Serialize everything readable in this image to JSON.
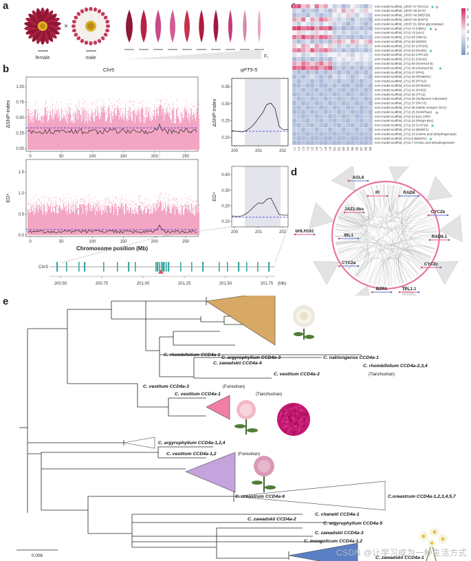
{
  "panels": {
    "a": "a",
    "b": "b",
    "c": "c",
    "d": "d",
    "e": "e"
  },
  "panel_a": {
    "female_label": "female",
    "cross_symbol": "×",
    "male_label": "male",
    "f1_label": "F₁",
    "colors": {
      "female": "#9b1b3a",
      "male_petal": "#f4f0ec",
      "male_tip": "#c23a5e",
      "ray": [
        "#8e1836",
        "#b52346",
        "#c84a8c",
        "#d45b96",
        "#c8304c",
        "#b01c3b",
        "#9e1a4a",
        "#c23a7a",
        "#d889ad",
        "#e6a9c7"
      ]
    }
  },
  "panel_b": {
    "title_left": "Chr5",
    "title_right": "qPT5-5",
    "ylabel_top": "ΔSNP-index",
    "ylabel_bottom": "ED⁴",
    "xlabel": "Chromosome position (Mb)",
    "x_ticks_left": [
      "0",
      "50",
      "100",
      "150",
      "200",
      "250"
    ],
    "x_ticks_right": [
      "200",
      "201",
      "202"
    ],
    "y_ticks_top_left": [
      "0.00",
      "0.25",
      "0.50",
      "0.75",
      "1.00"
    ],
    "y_ticks_top_right": [
      "0.20",
      "0.25",
      "0.30",
      "0.35"
    ],
    "y_ticks_bottom_left": [
      "0.0",
      "0.5",
      "1.0",
      "1.5"
    ],
    "y_ticks_bottom_right": [
      "0.10",
      "0.20",
      "0.30",
      "0.40"
    ],
    "gene_track_label": "Chr5",
    "gene_track_ticks": [
      "200.50",
      "200.75",
      "201.00",
      "201.25",
      "201.50",
      "201.75"
    ],
    "gene_track_unit": "(Mb)",
    "colors": {
      "dots": "#f08fb4",
      "line": "#222222",
      "threshold": "#2b2bd6",
      "shade": "#e3e3ea",
      "gene": "#3aa6a3"
    }
  },
  "panel_c": {
    "genes": [
      "evm.model.scaffold_10037.47 (RCC1)",
      "evm.model.scaffold_10037.48 (HAT)",
      "evm.model.scaffold_10037.49 (MEF29)",
      "evm.model.scaffold_10037.50 (EXP3)",
      "evm.model.scaffold_10037.51 (DNA glycosylase)",
      "evm.model.scaffold_2712.74 (HB21)",
      "evm.model.scaffold_2712.73 (LEA)",
      "evm.model.scaffold_2712.66 (SMA1)",
      "evm.model.scaffold_2712.59 (EDR2)",
      "evm.model.scaffold_2712.54 (ATAD3)",
      "evm.model.scaffold_2712.53 (RAD6)",
      "evm.model.scaffold_2712.52 (APC10)",
      "evm.model.scaffold_2712.51 (CDAD)",
      "evm.model.scaffold_2712.50 (Inverse3-b)",
      "evm.model.scaffold_2712.49 (Inverse3-b)",
      "evm.model.scaffold_2712.47 (PP4)",
      "evm.model.scaffold_2712.46 (RCBER1)",
      "evm.model.scaffold_2712.45 (PTI13)",
      "evm.model.scaffold_2712.43 (PCB1R1)",
      "evm.model.scaffold_2712.41 (KHZ2)",
      "evm.model.scaffold_2712.40 (TT12)",
      "evm.model.scaffold_2712.38 (Isoflavone reductase)",
      "evm.model.scaffold_2712.37 (RFC3)",
      "evm.model.scaffold_2712.36 (Nitrile receptor OCC)",
      "evm.model.scaffold_2712.25 (trmMTase)",
      "evm.model.scaffold_2712.24 (pol_ORF)",
      "evm.model.scaffold_2712.22 (RingH-Box)",
      "evm.model.scaffold_2712.16 (CAP1a)",
      "evm.model.scaffold_2712.14 (BSMT1)",
      "evm.model.scaffold_2712.10 (Amino acid dehydrogenase)",
      "evm.model.scaffold_2712.9 (BSMT1)",
      "evm.model.scaffold_2712.7 (Amino acid dehydrogenase)"
    ],
    "samples": [
      "L1",
      "L2",
      "L3",
      "L4",
      "L5",
      "L6",
      "L7",
      "L8",
      "L9",
      "S1",
      "S2",
      "S3",
      "S4",
      "S5",
      "S6",
      "S7",
      "S8",
      "S9"
    ],
    "matrix": [
      [
        0.85,
        0.9,
        0.6,
        0.7,
        0.5,
        0.8,
        0.6,
        0.7,
        0.5,
        0.3,
        0.4,
        0.2,
        0.3,
        0.5,
        0.4,
        0.3,
        0.2,
        0.4
      ],
      [
        0.3,
        0.4,
        0.2,
        0.3,
        0.3,
        0.2,
        0.4,
        0.3,
        0.2,
        0.6,
        0.5,
        0.7,
        0.4,
        0.6,
        0.5,
        0.4,
        0.6,
        0.5
      ],
      [
        0.2,
        0.3,
        0.3,
        0.2,
        0.4,
        0.3,
        0.2,
        0.3,
        0.3,
        0.5,
        0.4,
        0.5,
        0.6,
        0.4,
        0.3,
        0.5,
        0.4,
        0.3
      ],
      [
        0.7,
        0.6,
        0.8,
        0.5,
        0.7,
        0.6,
        0.8,
        0.7,
        0.6,
        0.4,
        0.3,
        0.4,
        0.3,
        0.2,
        0.4,
        0.3,
        0.3,
        0.2
      ],
      [
        0.4,
        0.3,
        0.5,
        0.4,
        0.3,
        0.4,
        0.3,
        0.5,
        0.4,
        0.3,
        0.4,
        0.3,
        0.2,
        0.3,
        0.4,
        0.3,
        0.2,
        0.3
      ],
      [
        0.9,
        0.95,
        0.8,
        0.85,
        0.9,
        0.7,
        0.85,
        0.8,
        0.9,
        0.2,
        0.3,
        0.15,
        0.25,
        0.2,
        0.3,
        0.2,
        0.25,
        0.2
      ],
      [
        0.5,
        0.6,
        0.4,
        0.5,
        0.4,
        0.6,
        0.5,
        0.4,
        0.5,
        0.3,
        0.4,
        0.3,
        0.4,
        0.3,
        0.3,
        0.4,
        0.3,
        0.4
      ],
      [
        0.8,
        0.7,
        0.9,
        0.75,
        0.8,
        0.7,
        0.85,
        0.8,
        0.7,
        0.3,
        0.2,
        0.3,
        0.25,
        0.2,
        0.3,
        0.2,
        0.3,
        0.25
      ],
      [
        0.3,
        0.2,
        0.3,
        0.4,
        0.2,
        0.3,
        0.2,
        0.3,
        0.2,
        0.6,
        0.7,
        0.6,
        0.5,
        0.7,
        0.6,
        0.5,
        0.6,
        0.7
      ],
      [
        0.6,
        0.5,
        0.7,
        0.6,
        0.5,
        0.7,
        0.6,
        0.5,
        0.6,
        0.4,
        0.3,
        0.4,
        0.3,
        0.4,
        0.3,
        0.4,
        0.3,
        0.4
      ],
      [
        0.75,
        0.8,
        0.7,
        0.6,
        0.85,
        0.7,
        0.75,
        0.8,
        0.7,
        0.25,
        0.3,
        0.2,
        0.3,
        0.2,
        0.25,
        0.3,
        0.2,
        0.3
      ],
      [
        0.4,
        0.5,
        0.3,
        0.4,
        0.5,
        0.4,
        0.3,
        0.4,
        0.5,
        0.5,
        0.4,
        0.5,
        0.4,
        0.3,
        0.5,
        0.4,
        0.5,
        0.4
      ],
      [
        0.2,
        0.3,
        0.2,
        0.3,
        0.2,
        0.3,
        0.2,
        0.3,
        0.2,
        0.4,
        0.5,
        0.4,
        0.5,
        0.4,
        0.5,
        0.4,
        0.5,
        0.4
      ],
      [
        0.7,
        0.6,
        0.8,
        0.7,
        0.6,
        0.7,
        0.8,
        0.6,
        0.7,
        0.3,
        0.4,
        0.3,
        0.3,
        0.4,
        0.3,
        0.3,
        0.4,
        0.3
      ],
      [
        0.85,
        0.8,
        0.9,
        0.75,
        0.8,
        0.85,
        0.7,
        0.8,
        0.9,
        0.2,
        0.3,
        0.2,
        0.3,
        0.2,
        0.3,
        0.2,
        0.3,
        0.2
      ],
      [
        0.3,
        0.2,
        0.3,
        0.2,
        0.3,
        0.2,
        0.3,
        0.2,
        0.3,
        0.3,
        0.2,
        0.3,
        0.2,
        0.3,
        0.2,
        0.3,
        0.2,
        0.3
      ],
      [
        0.2,
        0.3,
        0.2,
        0.3,
        0.4,
        0.3,
        0.2,
        0.3,
        0.2,
        0.4,
        0.3,
        0.4,
        0.3,
        0.2,
        0.3,
        0.4,
        0.3,
        0.2
      ],
      [
        0.3,
        0.2,
        0.3,
        0.3,
        0.2,
        0.3,
        0.2,
        0.3,
        0.3,
        0.3,
        0.2,
        0.3,
        0.3,
        0.2,
        0.3,
        0.2,
        0.3,
        0.3
      ],
      [
        0.2,
        0.2,
        0.3,
        0.2,
        0.2,
        0.3,
        0.2,
        0.2,
        0.3,
        0.2,
        0.3,
        0.2,
        0.2,
        0.3,
        0.2,
        0.2,
        0.3,
        0.2
      ],
      [
        0.25,
        0.3,
        0.2,
        0.3,
        0.25,
        0.2,
        0.3,
        0.25,
        0.2,
        0.3,
        0.25,
        0.2,
        0.3,
        0.2,
        0.25,
        0.3,
        0.2,
        0.25
      ],
      [
        0.2,
        0.25,
        0.3,
        0.2,
        0.25,
        0.3,
        0.2,
        0.25,
        0.3,
        0.2,
        0.25,
        0.3,
        0.2,
        0.25,
        0.3,
        0.2,
        0.25,
        0.3
      ],
      [
        0.3,
        0.2,
        0.25,
        0.3,
        0.2,
        0.25,
        0.3,
        0.2,
        0.25,
        0.3,
        0.2,
        0.25,
        0.3,
        0.2,
        0.25,
        0.3,
        0.2,
        0.25
      ],
      [
        0.2,
        0.3,
        0.2,
        0.25,
        0.3,
        0.2,
        0.25,
        0.3,
        0.2,
        0.25,
        0.3,
        0.2,
        0.25,
        0.3,
        0.2,
        0.25,
        0.3,
        0.2
      ],
      [
        0.25,
        0.2,
        0.3,
        0.2,
        0.25,
        0.3,
        0.2,
        0.25,
        0.3,
        0.2,
        0.25,
        0.3,
        0.2,
        0.25,
        0.3,
        0.2,
        0.25,
        0.3
      ],
      [
        0.2,
        0.25,
        0.2,
        0.3,
        0.2,
        0.25,
        0.3,
        0.2,
        0.25,
        0.3,
        0.2,
        0.25,
        0.3,
        0.2,
        0.25,
        0.2,
        0.3,
        0.2
      ],
      [
        0.3,
        0.25,
        0.2,
        0.25,
        0.3,
        0.2,
        0.25,
        0.3,
        0.2,
        0.25,
        0.3,
        0.2,
        0.25,
        0.3,
        0.2,
        0.25,
        0.3,
        0.25
      ],
      [
        0.2,
        0.3,
        0.25,
        0.2,
        0.3,
        0.25,
        0.2,
        0.3,
        0.25,
        0.2,
        0.3,
        0.25,
        0.2,
        0.3,
        0.25,
        0.2,
        0.3,
        0.25
      ],
      [
        0.25,
        0.2,
        0.3,
        0.25,
        0.2,
        0.3,
        0.25,
        0.2,
        0.3,
        0.25,
        0.2,
        0.3,
        0.25,
        0.2,
        0.3,
        0.25,
        0.2,
        0.3
      ],
      [
        0.3,
        0.3,
        0.2,
        0.3,
        0.3,
        0.2,
        0.3,
        0.3,
        0.2,
        0.3,
        0.3,
        0.2,
        0.3,
        0.3,
        0.2,
        0.3,
        0.3,
        0.2
      ],
      [
        0.2,
        0.25,
        0.25,
        0.2,
        0.25,
        0.25,
        0.2,
        0.25,
        0.25,
        0.2,
        0.25,
        0.25,
        0.2,
        0.25,
        0.25,
        0.2,
        0.25,
        0.25
      ],
      [
        0.25,
        0.2,
        0.2,
        0.25,
        0.2,
        0.2,
        0.25,
        0.2,
        0.2,
        0.25,
        0.2,
        0.2,
        0.25,
        0.2,
        0.2,
        0.25,
        0.2,
        0.2
      ],
      [
        0.2,
        0.2,
        0.25,
        0.2,
        0.2,
        0.25,
        0.2,
        0.2,
        0.25,
        0.2,
        0.2,
        0.25,
        0.2,
        0.2,
        0.25,
        0.2,
        0.2,
        0.25
      ]
    ],
    "legend_ticks": [
      "6",
      "5",
      "4",
      "3",
      "2",
      "1",
      "0"
    ],
    "colors": {
      "low": "#7f97c7",
      "mid": "#f2f2f5",
      "high": "#d6295c",
      "star": "#2db28c",
      "diamond": "#c9a0d6",
      "triangle": "#e06b8f"
    }
  },
  "panel_d": {
    "nodes": [
      "AGL6",
      "PI",
      "RAD6",
      "JAZ1-like",
      "CYC2b",
      "bHLH161",
      "IBL1",
      "RAD6.1",
      "CYC2a",
      "CYC2c",
      "BZR1",
      "TPL1.1"
    ],
    "colors": {
      "ring": "#e8759a",
      "link": "#9a9a9a",
      "fan": "#dcdcdc"
    }
  },
  "panel_e": {
    "taxa": [
      {
        "name": "C. rhombifolium CCD4a-1",
        "suffix": ""
      },
      {
        "name": "C. naktongense CCD4a-1",
        "suffix": ""
      },
      {
        "name": "C. argyrophyllum CCD4a-3",
        "suffix": ""
      },
      {
        "name": "C. zawadskii CCD4a-4",
        "suffix": ""
      },
      {
        "name": "C. rhombifolium CCD4a-2,3,4",
        "suffix": ""
      },
      {
        "name": "C. vestitum CCD4a-2",
        "suffix": " (Tianzhushan)"
      },
      {
        "name": "C. vestitum CCD4a-3",
        "suffix": " (Funiushan)"
      },
      {
        "name": "C. vestitum CCD4a-1",
        "suffix": " (Tianzhushan)"
      },
      {
        "name": "C. argyrophyllum CCD4a-1,2,4",
        "suffix": ""
      },
      {
        "name": "C. vestitum CCD4a-1,2",
        "suffix": " (Funiushan)"
      },
      {
        "name": "C.oreastrum CCD4a-1,2,3,4,5,7",
        "suffix": ""
      },
      {
        "name": "C. oreastrum CCD4a-6",
        "suffix": ""
      },
      {
        "name": "C. chanetii CCD4a-1",
        "suffix": ""
      },
      {
        "name": "C. zawadskii CCD4a-2",
        "suffix": ""
      },
      {
        "name": "C. argyrophyllum CCD4a-5",
        "suffix": ""
      },
      {
        "name": "C. zawadskii CCD4a-3",
        "suffix": ""
      },
      {
        "name": "C. mongolicum CCD4a-1,2",
        "suffix": ""
      },
      {
        "name": "C. zawadskii CCD4a-1",
        "suffix": ""
      }
    ],
    "scale_label": "0.006",
    "colors": {
      "orange": "#d8a964",
      "pink": "#f07fa3",
      "lavender": "#c5a3dd",
      "blue": "#5b7fc4",
      "pompon": "#c2186e"
    }
  },
  "watermark": "CSDN @让学习成为一种生活方式"
}
